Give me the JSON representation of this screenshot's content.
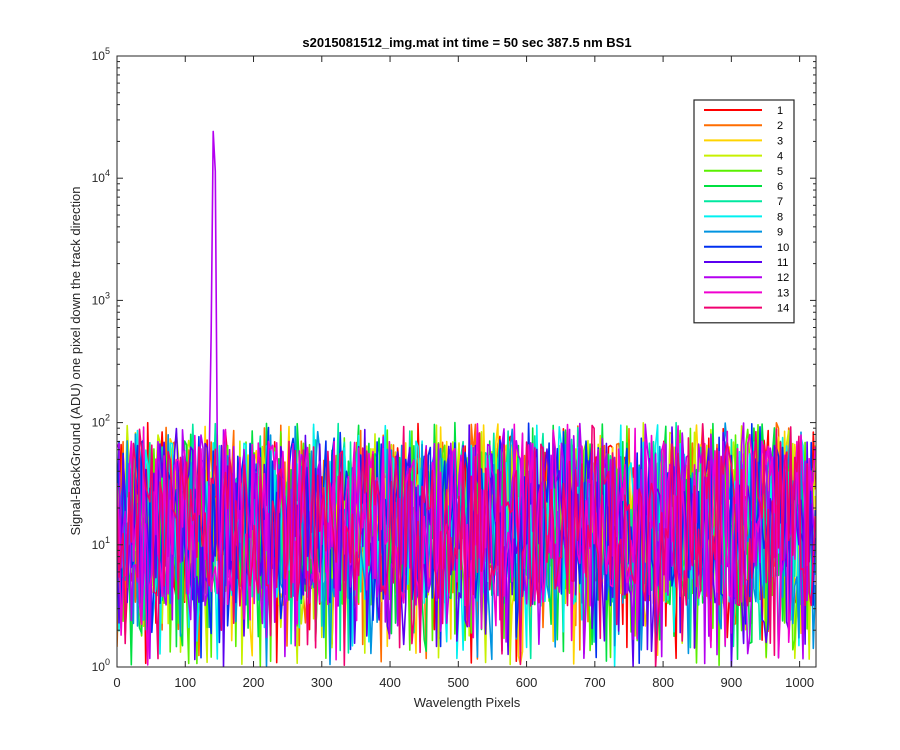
{
  "figure": {
    "title": "s2015081512_img.mat int time = 50 sec  387.5 nm BS1",
    "xlabel": "Wavelength Pixels",
    "ylabel": "Signal-BackGround (ADU) one pixel down the track direction"
  },
  "chart_data": {
    "type": "line",
    "title": "s2015081512_img.mat int time = 50 sec  387.5 nm BS1",
    "xlabel": "Wavelength Pixels",
    "ylabel": "Signal-BackGround (ADU) one pixel down the track direction",
    "xlim": [
      0,
      1024
    ],
    "ylim": [
      1,
      100000
    ],
    "yscale": "log",
    "grid": false,
    "legend_position": "top-right",
    "x_ticks": [
      "0",
      "100",
      "200",
      "300",
      "400",
      "500",
      "600",
      "700",
      "800",
      "900",
      "1000"
    ],
    "y_ticks": [
      {
        "base": "10",
        "exp": "0"
      },
      {
        "base": "10",
        "exp": "1"
      },
      {
        "base": "10",
        "exp": "2"
      },
      {
        "base": "10",
        "exp": "3"
      },
      {
        "base": "10",
        "exp": "4"
      },
      {
        "base": "10",
        "exp": "5"
      }
    ],
    "noise": {
      "x_range": [
        0,
        1024
      ],
      "y_range": [
        1,
        100
      ],
      "typical_level": 20
    },
    "series": [
      {
        "name": "1",
        "color": "#ff0000"
      },
      {
        "name": "2",
        "color": "#ff6d00"
      },
      {
        "name": "3",
        "color": "#ffd400"
      },
      {
        "name": "4",
        "color": "#c8f000"
      },
      {
        "name": "5",
        "color": "#5af000"
      },
      {
        "name": "6",
        "color": "#00e040"
      },
      {
        "name": "7",
        "color": "#00e8a0"
      },
      {
        "name": "8",
        "color": "#00f0f0"
      },
      {
        "name": "9",
        "color": "#0094e0"
      },
      {
        "name": "10",
        "color": "#0030f0"
      },
      {
        "name": "11",
        "color": "#5a00f0"
      },
      {
        "name": "12",
        "color": "#b400f0",
        "peak": {
          "x": 142,
          "y": 31000
        }
      },
      {
        "name": "13",
        "color": "#f000d0"
      },
      {
        "name": "14",
        "color": "#f00070"
      }
    ]
  }
}
